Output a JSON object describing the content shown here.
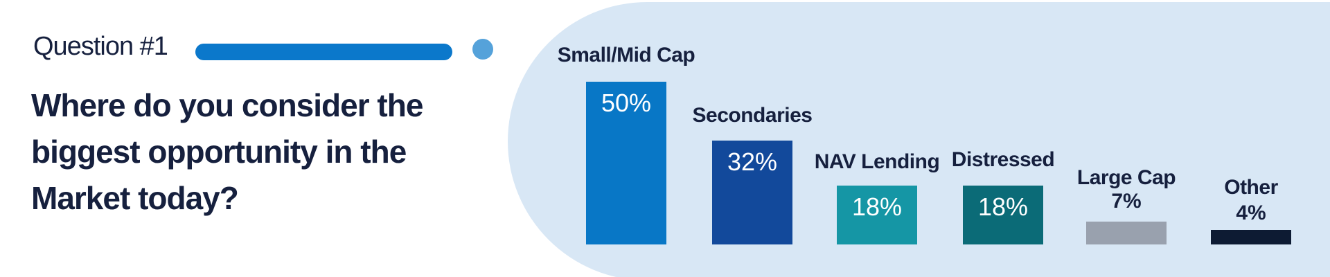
{
  "kicker": {
    "label": "Question #1"
  },
  "title": {
    "lines": [
      "Where do you consider the",
      "biggest opportunity in the",
      "Market today?"
    ],
    "text": "Where do you consider the biggest opportunity in the Market today?"
  },
  "colors": {
    "navy_text": "#16203E",
    "panel_bg": "#D8E7F5",
    "pill": "#0B78CB",
    "dot": "#55A2DA",
    "value_text_inside": "#FFFFFF"
  },
  "chart_data": {
    "type": "bar",
    "orientation": "vertical",
    "title": "Where do you consider the biggest opportunity in the Market today?",
    "unit": "%",
    "categories": [
      "Small/Mid Cap",
      "Secondaries",
      "NAV Lending",
      "Distressed",
      "Large Cap",
      "Other"
    ],
    "values": [
      50,
      32,
      18,
      18,
      7,
      4
    ],
    "value_labels": [
      "50%",
      "32%",
      "18%",
      "18%",
      "7%",
      "4%"
    ],
    "bar_colors": [
      "#0877C6",
      "#12499B",
      "#1596A5",
      "#0B6B77",
      "#99A1AE",
      "#0D1B33"
    ],
    "value_label_placement": [
      "inside",
      "inside",
      "inside",
      "inside",
      "above",
      "above"
    ],
    "axes": "none",
    "grid": "off",
    "legend": "none"
  }
}
